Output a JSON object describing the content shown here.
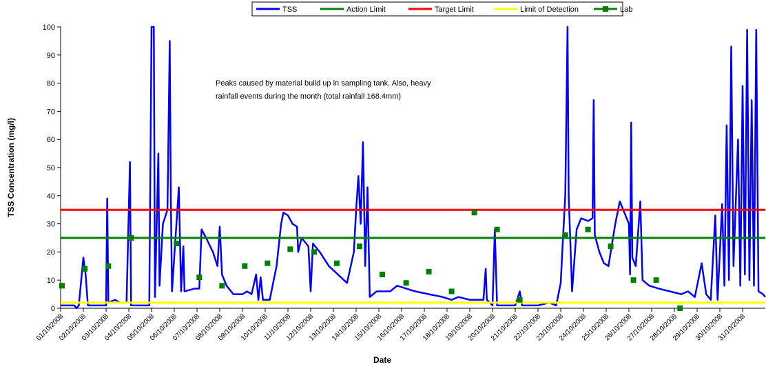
{
  "chart_data": {
    "type": "line",
    "xlabel": "Date",
    "ylabel": "TSS Concentration (mg/l)",
    "annotation": [
      "Peaks caused by material build up in sampling tank.  Also, heavy",
      "rainfall events during the month (total rainfall 168.4mm)"
    ],
    "xlim": [
      0,
      31
    ],
    "ylim": [
      0,
      100
    ],
    "yticks": [
      0,
      10,
      20,
      30,
      40,
      50,
      60,
      70,
      80,
      90,
      100
    ],
    "xticks": [
      {
        "value": 0,
        "label": "01/10/2008"
      },
      {
        "value": 1,
        "label": "02/10/2008"
      },
      {
        "value": 2,
        "label": "03/10/2008"
      },
      {
        "value": 3,
        "label": "04/10/2008"
      },
      {
        "value": 4,
        "label": "05/10/2008"
      },
      {
        "value": 5,
        "label": "06/10/2008"
      },
      {
        "value": 6,
        "label": "07/10/2008"
      },
      {
        "value": 7,
        "label": "08/10/2008"
      },
      {
        "value": 8,
        "label": "09/10/2008"
      },
      {
        "value": 9,
        "label": "10/10/2008"
      },
      {
        "value": 10,
        "label": "11/10/2008"
      },
      {
        "value": 11,
        "label": "12/10/2008"
      },
      {
        "value": 12,
        "label": "13/10/2008"
      },
      {
        "value": 13,
        "label": "14/10/2008"
      },
      {
        "value": 14,
        "label": "15/10/2008"
      },
      {
        "value": 15,
        "label": "16/10/2008"
      },
      {
        "value": 16,
        "label": "17/10/2008"
      },
      {
        "value": 17,
        "label": "18/10/2008"
      },
      {
        "value": 18,
        "label": "19/10/2008"
      },
      {
        "value": 19,
        "label": "20/10/2008"
      },
      {
        "value": 20,
        "label": "21/10/2008"
      },
      {
        "value": 21,
        "label": "22/10/2008"
      },
      {
        "value": 22,
        "label": "23/10/2008"
      },
      {
        "value": 23,
        "label": "24/10/2008"
      },
      {
        "value": 24,
        "label": "25/10/2008"
      },
      {
        "value": 25,
        "label": "26/10/2008"
      },
      {
        "value": 26,
        "label": "27/10/2008"
      },
      {
        "value": 27,
        "label": "28/10/2008"
      },
      {
        "value": 28,
        "label": "29/10/2008"
      },
      {
        "value": 29,
        "label": "30/10/2008"
      },
      {
        "value": 30,
        "label": "31/10/2008"
      }
    ],
    "series": [
      {
        "name": "TSS",
        "color": "#0000ff",
        "width": 2.5,
        "x": [
          0,
          0.6,
          0.7,
          0.8,
          1.0,
          1.1,
          1.2,
          2.0,
          2.05,
          2.1,
          2.4,
          2.6,
          2.9,
          3.05,
          3.1,
          3.5,
          3.9,
          4.0,
          4.1,
          4.15,
          4.3,
          4.35,
          4.5,
          4.7,
          4.8,
          4.85,
          4.9,
          5.2,
          5.3,
          5.4,
          5.45,
          5.9,
          6.1,
          6.2,
          6.4,
          6.7,
          6.9,
          7.0,
          7.1,
          7.3,
          7.6,
          8.0,
          8.2,
          8.4,
          8.6,
          8.7,
          8.8,
          8.9,
          9.2,
          9.5,
          9.7,
          9.8,
          10.0,
          10.2,
          10.4,
          10.45,
          10.6,
          10.9,
          11.0,
          11.1,
          11.4,
          11.8,
          12.2,
          12.6,
          12.9,
          13.0,
          13.1,
          13.2,
          13.3,
          13.4,
          13.5,
          13.6,
          13.9,
          14.5,
          14.8,
          15.2,
          15.6,
          16.2,
          16.8,
          17.2,
          17.5,
          18.0,
          18.6,
          18.7,
          18.75,
          19.0,
          19.1,
          19.2,
          20.0,
          20.2,
          20.3,
          21.0,
          21.5,
          21.8,
          22.0,
          22.1,
          22.2,
          22.3,
          22.35,
          22.5,
          22.7,
          22.9,
          23.2,
          23.4,
          23.45,
          23.5,
          23.7,
          23.9,
          24.1,
          24.4,
          24.6,
          24.8,
          25.0,
          25.05,
          25.1,
          25.15,
          25.3,
          25.5,
          25.6,
          25.9,
          26.3,
          26.8,
          27.3,
          27.6,
          27.9,
          28.0,
          28.2,
          28.4,
          28.6,
          28.8,
          28.9,
          29.1,
          29.2,
          29.3,
          29.4,
          29.5,
          29.6,
          29.8,
          29.9,
          30.0,
          30.1,
          30.2,
          30.3,
          30.4,
          30.5,
          30.6,
          30.7,
          30.9,
          31.0
        ],
        "values": [
          1,
          1,
          0,
          1,
          18,
          12,
          1,
          1,
          39,
          2,
          3,
          2,
          2,
          52,
          1,
          1,
          1,
          100,
          100,
          4,
          55,
          8,
          30,
          35,
          95,
          38,
          6,
          43,
          6,
          22,
          6,
          7,
          7,
          28,
          25,
          20,
          15,
          29,
          12,
          8,
          5,
          5,
          6,
          5,
          12,
          3,
          11,
          3,
          3,
          15,
          30,
          34,
          33,
          30,
          29,
          20,
          25,
          22,
          6,
          23,
          20,
          15,
          12,
          9,
          20,
          35,
          47,
          30,
          59,
          15,
          43,
          4,
          6,
          6,
          8,
          7,
          6,
          5,
          4,
          3,
          4,
          3,
          3,
          14,
          3,
          1,
          28,
          1,
          1,
          6,
          1,
          1,
          2,
          1,
          9,
          25,
          40,
          100,
          40,
          6,
          28,
          32,
          31,
          32,
          74,
          26,
          20,
          16,
          15,
          30,
          38,
          34,
          30,
          12,
          66,
          18,
          15,
          38,
          10,
          8,
          7,
          6,
          5,
          6,
          4,
          8,
          16,
          5,
          3,
          33,
          3,
          37,
          8,
          65,
          10,
          93,
          15,
          60,
          8,
          79,
          12,
          99,
          10,
          74,
          8,
          99,
          6,
          5,
          4
        ]
      },
      {
        "name": "Action Limit",
        "color": "#008000",
        "width": 3,
        "x": [
          0,
          31
        ],
        "values": [
          25,
          25
        ]
      },
      {
        "name": "Target Limit",
        "color": "#ff0000",
        "width": 3,
        "x": [
          0,
          31
        ],
        "values": [
          35,
          35
        ]
      },
      {
        "name": "Limit of Detection",
        "color": "#ffff00",
        "width": 3,
        "x": [
          0,
          31
        ],
        "values": [
          2,
          2
        ]
      },
      {
        "name": "Lab",
        "color": "#008000",
        "marker": "square",
        "show_line": false,
        "x": [
          0.06,
          1.06,
          2.1,
          3.1,
          5.1,
          6.1,
          7.1,
          8.1,
          9.1,
          10.1,
          11.15,
          12.15,
          13.15,
          14.15,
          15.2,
          16.2,
          17.2,
          18.2,
          19.2,
          20.2,
          22.2,
          23.2,
          24.2,
          25.2,
          26.2,
          27.25
        ],
        "values": [
          8,
          14,
          15,
          25,
          23,
          11,
          8,
          15,
          16,
          21,
          20,
          16,
          22,
          12,
          9,
          13,
          6,
          34,
          28,
          3,
          26,
          28,
          22,
          10,
          10,
          0
        ]
      }
    ]
  }
}
